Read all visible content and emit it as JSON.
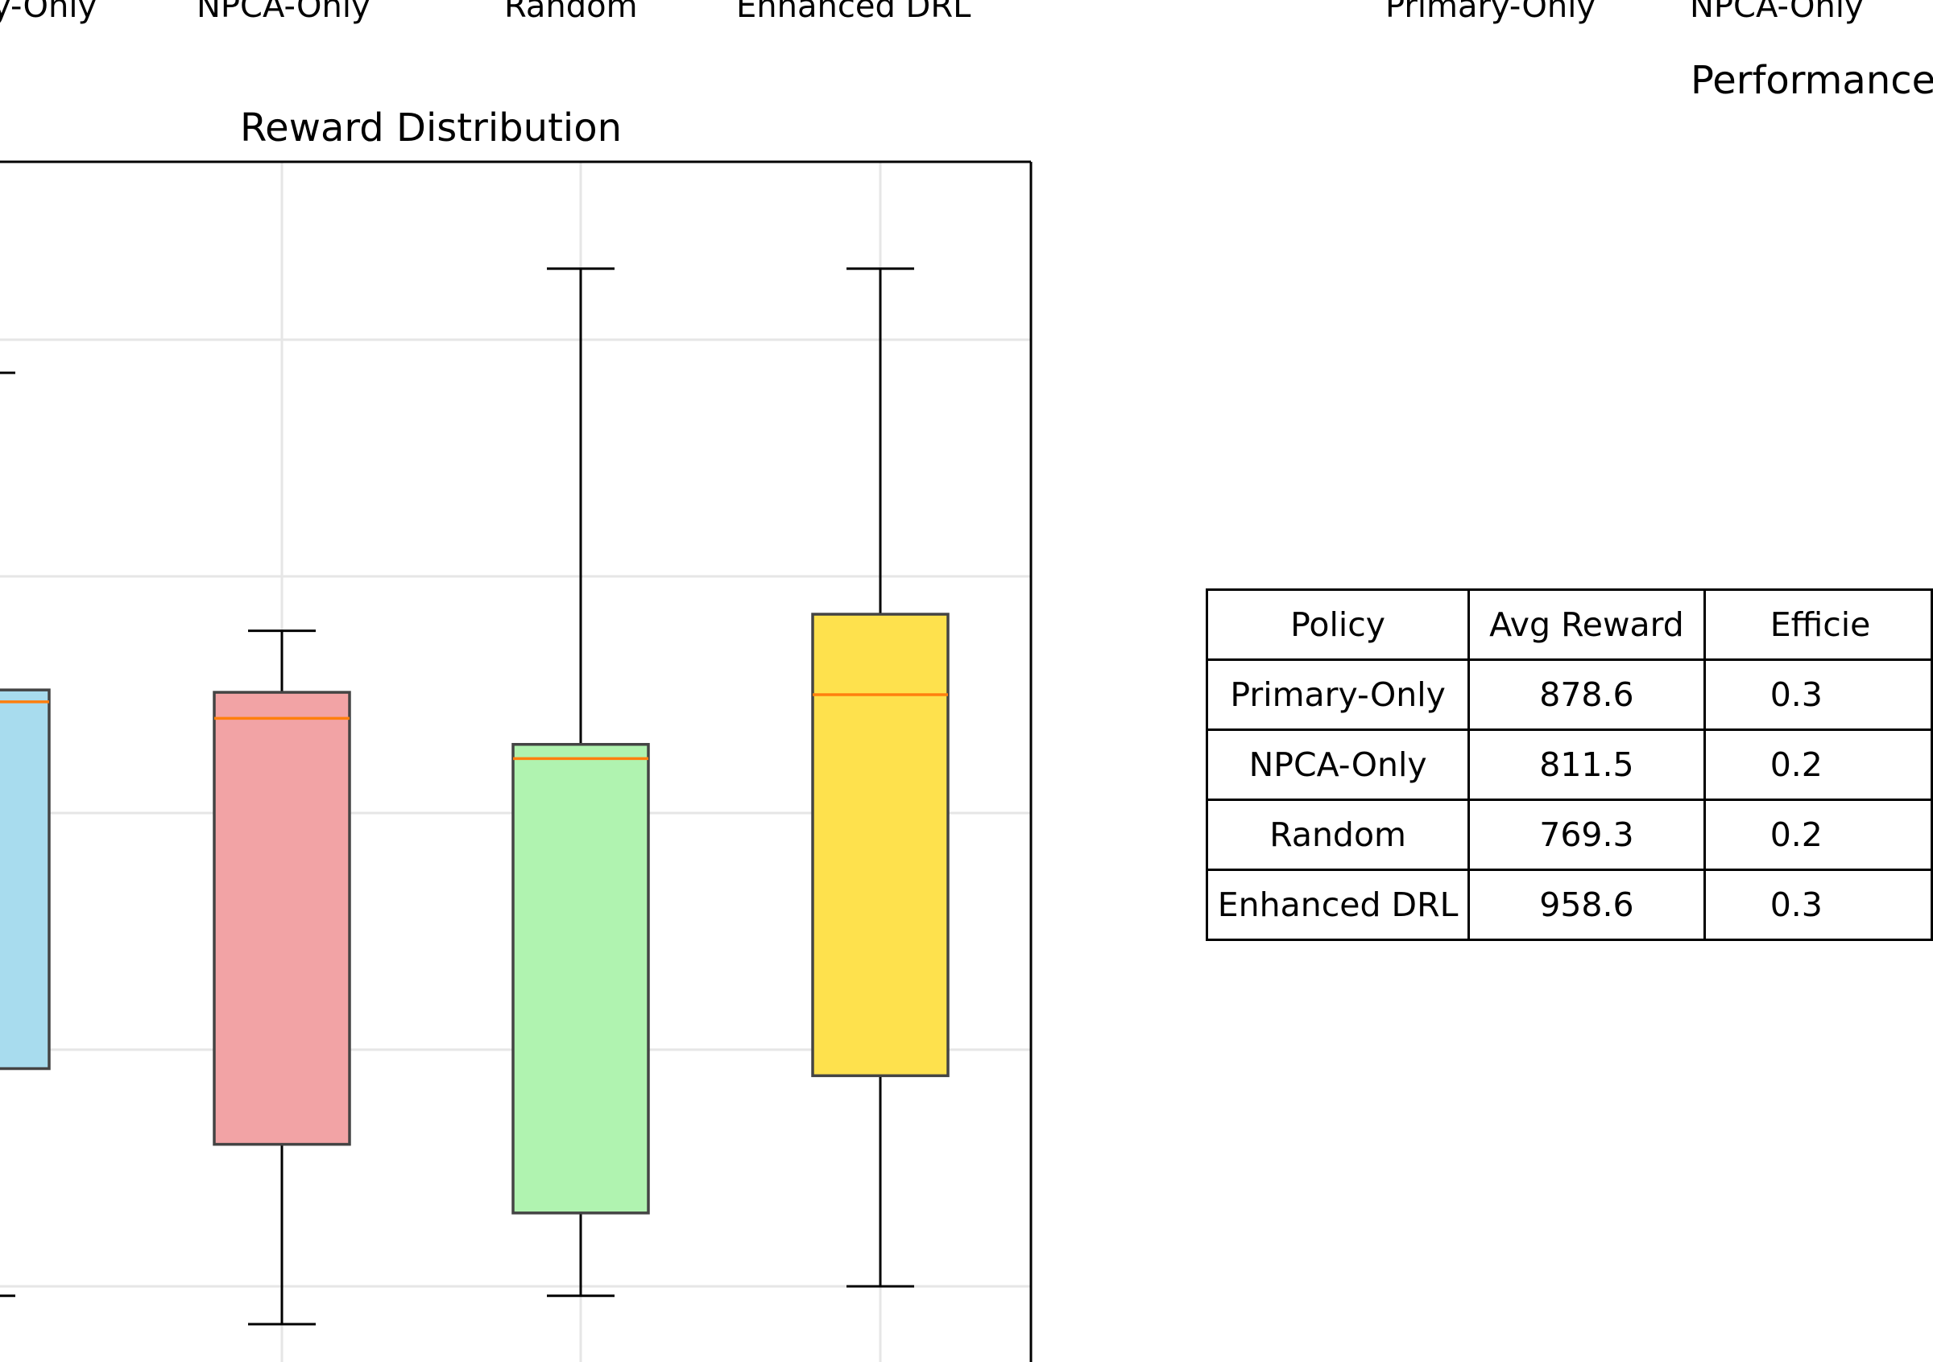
{
  "top_left_labels": [
    "y-Only",
    "NPCA-Only",
    "Random",
    "Enhanced DRL"
  ],
  "top_right_labels": [
    "Primary-Only",
    "NPCA-Only"
  ],
  "right_panel_title": "Performance",
  "chart_data": {
    "type": "box",
    "title": "Reward Distribution",
    "categories": [
      "Primary-Only",
      "NPCA-Only",
      "Random",
      "Enhanced DRL"
    ],
    "y_range_px_note": "values below are in relative y-units read from gridlines",
    "ylim": [
      0,
      5.6
    ],
    "gridlines": [
      1,
      2,
      3,
      4,
      5
    ],
    "grid": true,
    "boxes": [
      {
        "name": "Primary-Only",
        "whisker_low": 0.96,
        "q1": 1.92,
        "median": 3.47,
        "q3": 3.52,
        "whisker_high": 4.86,
        "color": "#a8dcee"
      },
      {
        "name": "NPCA-Only",
        "whisker_low": 0.84,
        "q1": 1.6,
        "median": 3.4,
        "q3": 3.51,
        "whisker_high": 3.77,
        "color": "#f2a3a5"
      },
      {
        "name": "Random",
        "whisker_low": 0.96,
        "q1": 1.31,
        "median": 3.23,
        "q3": 3.29,
        "whisker_high": 5.3,
        "color": "#b0f3b0"
      },
      {
        "name": "Enhanced DRL",
        "whisker_low": 1.0,
        "q1": 1.89,
        "median": 3.5,
        "q3": 3.84,
        "whisker_high": 5.3,
        "color": "#fee14d"
      }
    ],
    "median_color": "#ff7f0e"
  },
  "table": {
    "headers": [
      "Policy",
      "Avg Reward",
      "Efficie"
    ],
    "rows": [
      [
        "Primary-Only",
        "878.6",
        "0.3"
      ],
      [
        "NPCA-Only",
        "811.5",
        "0.2"
      ],
      [
        "Random",
        "769.3",
        "0.2"
      ],
      [
        "Enhanced DRL",
        "958.6",
        "0.3"
      ]
    ]
  }
}
